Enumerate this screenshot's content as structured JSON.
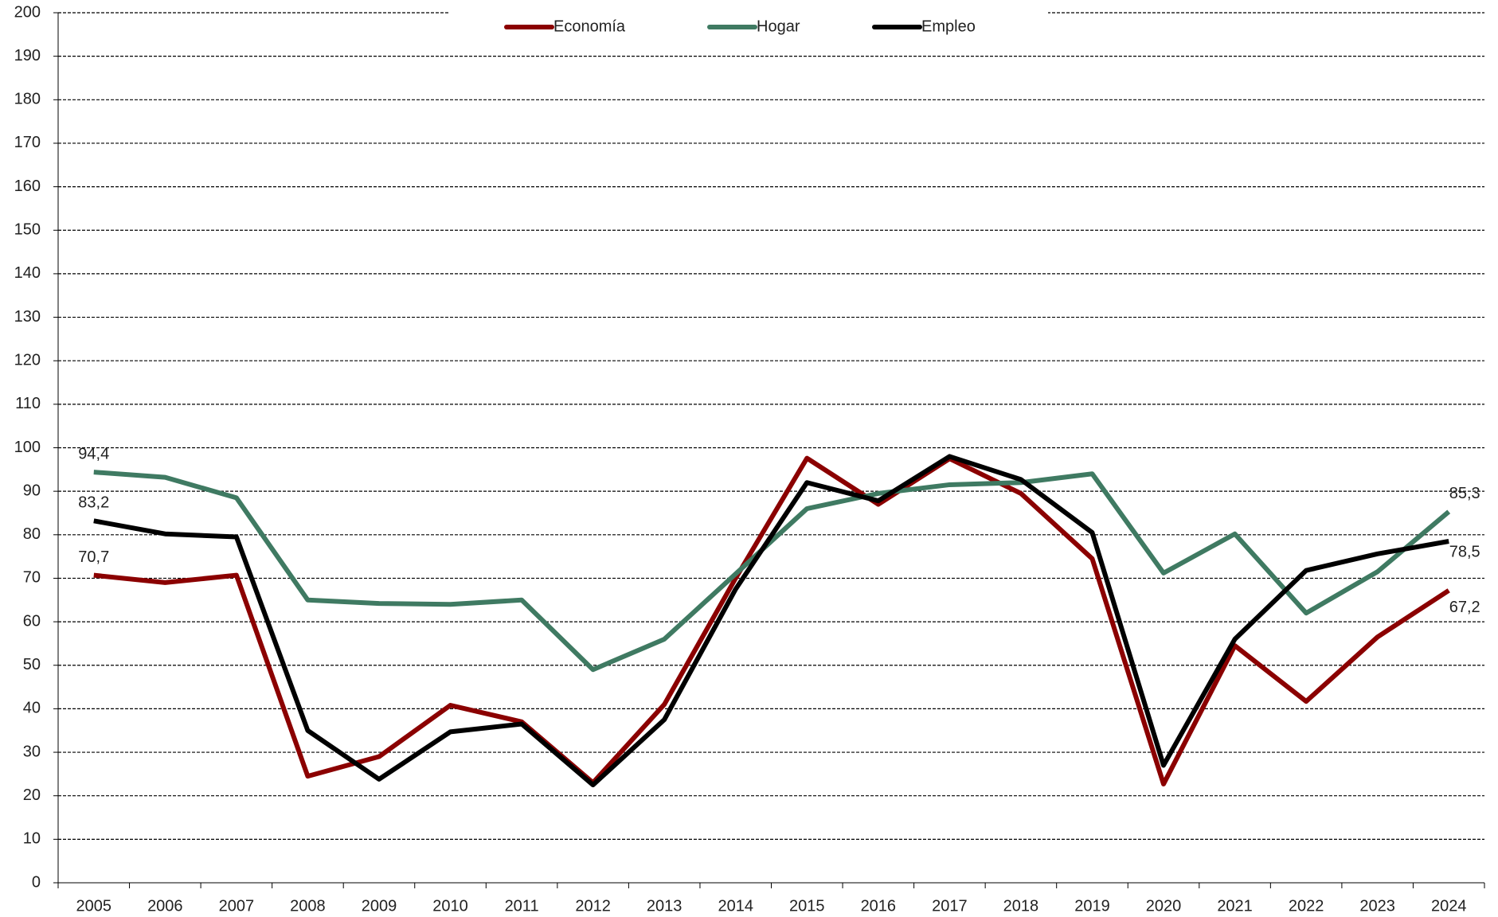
{
  "chart_data": {
    "type": "line",
    "categories": [
      "2005",
      "2006",
      "2007",
      "2008",
      "2009",
      "2010",
      "2011",
      "2012",
      "2013",
      "2014",
      "2015",
      "2016",
      "2017",
      "2018",
      "2019",
      "2020",
      "2021",
      "2022",
      "2023",
      "2024"
    ],
    "series": [
      {
        "name": "Economía",
        "color": "#8b0000",
        "values": [
          70.7,
          69,
          70.7,
          24.5,
          29,
          40.8,
          37,
          23,
          41,
          70,
          97.6,
          87,
          97.5,
          89.5,
          74.5,
          22.7,
          54.5,
          41.7,
          56.5,
          67.2
        ],
        "value_labels": [
          "70,7",
          null,
          null,
          null,
          null,
          null,
          null,
          null,
          null,
          null,
          null,
          null,
          null,
          null,
          null,
          null,
          null,
          null,
          null,
          "67,2"
        ]
      },
      {
        "name": "Hogar",
        "color": "#3f7a62",
        "values": [
          94.4,
          93.2,
          88.5,
          65,
          64.2,
          64,
          65,
          49,
          56,
          71,
          86,
          89.5,
          91.5,
          92,
          94,
          71.2,
          80.2,
          62,
          71.5,
          85.3
        ],
        "value_labels": [
          "94,4",
          null,
          null,
          null,
          null,
          null,
          null,
          null,
          null,
          null,
          null,
          null,
          null,
          null,
          null,
          null,
          null,
          null,
          null,
          "85,3"
        ]
      },
      {
        "name": "Empleo",
        "color": "#000000",
        "values": [
          83.2,
          80.2,
          79.5,
          35,
          23.8,
          34.7,
          36.5,
          22.5,
          37.5,
          67.5,
          92,
          87.8,
          98,
          92.7,
          80.5,
          27,
          56,
          71.8,
          75.6,
          78.5
        ],
        "value_labels": [
          "83,2",
          null,
          null,
          null,
          null,
          null,
          null,
          null,
          null,
          null,
          null,
          null,
          null,
          null,
          null,
          null,
          null,
          null,
          null,
          "78,5"
        ]
      }
    ],
    "ylim": [
      0,
      200
    ],
    "yticks": [
      0,
      10,
      20,
      30,
      40,
      50,
      60,
      70,
      80,
      90,
      100,
      110,
      120,
      130,
      140,
      150,
      160,
      170,
      180,
      190,
      200
    ],
    "grid": true,
    "legend": "top"
  }
}
